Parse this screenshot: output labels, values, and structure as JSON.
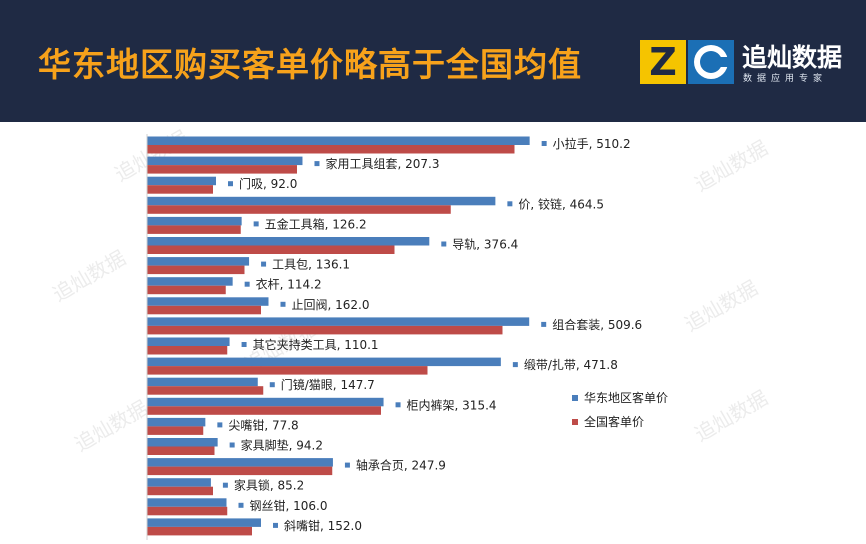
{
  "header": {
    "headline": "华东地区购买客单价略高于全国均值",
    "logo_letter_z": "Z",
    "brand_name": "追灿数据",
    "brand_tagline": "数据应用专家"
  },
  "watermark": "追灿数据",
  "colors": {
    "header_bg": "#1f2a44",
    "headline": "#f7a21b",
    "logo_z_bg": "#f5c400",
    "logo_c_bg": "#1b6fb5",
    "series_east": "#4a7ebb",
    "series_national": "#be4b48"
  },
  "chart_data": {
    "type": "bar",
    "orientation": "horizontal",
    "categories": [
      "小拉手",
      "家用工具组套",
      "门吸",
      "价, 铰链",
      "五金工具箱",
      "导轨",
      "工具包",
      "衣杆",
      "止回阀",
      "组合套装",
      "其它夹持类工具",
      "缎带/扎带",
      "门镜/猫眼",
      "柜内裤架",
      "尖嘴钳",
      "家具脚垫",
      "轴承合页",
      "家具锁",
      "钢丝钳",
      "斜嘴钳"
    ],
    "point_labels": [
      "小拉手, 510.2",
      "家用工具组套, 207.3",
      "门吸, 92.0",
      "价, 铰链, 464.5",
      "五金工具箱, 126.2",
      "导轨, 376.4",
      "工具包, 136.1",
      "衣杆, 114.2",
      "止回阀, 162.0",
      "组合套装, 509.6",
      "其它夹持类工具, 110.1",
      "缎带/扎带, 471.8",
      "门镜/猫眼, 147.7",
      "柜内裤架, 315.4",
      "尖嘴钳, 77.8",
      "家具脚垫, 94.2",
      "轴承合页, 247.9",
      "家具锁, 85.2",
      "钢丝钳, 106.0",
      "斜嘴钳, 152.0"
    ],
    "series": [
      {
        "name": "华东地区客单价",
        "values": [
          510.2,
          207.3,
          92.0,
          464.5,
          126.2,
          376.4,
          136.1,
          114.2,
          162.0,
          509.6,
          110.1,
          471.8,
          147.7,
          315.4,
          77.8,
          94.2,
          247.9,
          85.2,
          106.0,
          152.0
        ]
      },
      {
        "name": "全国客单价",
        "values": [
          490,
          200,
          88,
          405,
          125,
          330,
          130,
          105,
          152,
          474,
          107,
          374,
          155,
          312,
          75,
          90,
          247,
          88,
          107,
          140
        ]
      }
    ],
    "xlim": [
      0,
      600
    ],
    "legend_position": "right",
    "grid": false,
    "xlabel": "",
    "ylabel": ""
  }
}
